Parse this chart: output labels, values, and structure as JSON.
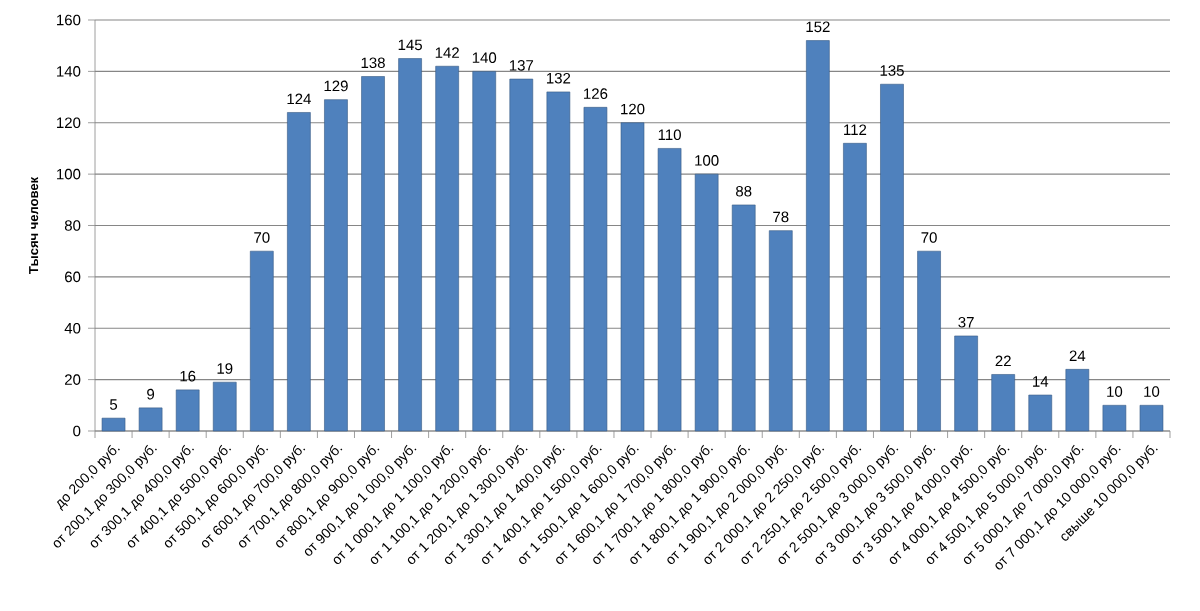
{
  "chart_data": {
    "type": "bar",
    "ylabel": "Тысяч человек",
    "categories": [
      "до 200,0 руб.",
      "от 200,1 до 300,0 руб.",
      "от 300,1 до 400,0 руб.",
      "от 400,1 до 500,0 руб.",
      "от 500,1 до 600,0 руб.",
      "от 600,1 до 700,0 руб.",
      "от 700,1 до 800,0 руб.",
      "от 800,1 до 900,0 руб.",
      "от 900,1 до 1 000,0 руб.",
      "от 1 000,1 до 1 100,0 руб.",
      "от 1 100,1 до 1 200,0 руб.",
      "от 1 200,1 до 1 300,0 руб.",
      "от 1 300,1 до 1 400,0 руб.",
      "от 1 400,1 до 1 500,0 руб.",
      "от 1 500,1 до 1 600,0 руб.",
      "от 1 600,1 до 1 700,0 руб.",
      "от 1 700,1 до 1 800,0 руб.",
      "от 1 800,1 до 1 900,0 руб.",
      "от 1 900,1 до 2 000,0 руб.",
      "от 2 000,1 до 2 250,0 руб.",
      "от 2 250,1 до 2 500,0 руб.",
      "от 2 500,1 до 3 000,0 руб.",
      "от 3 000,1 до 3 500,0 руб.",
      "от 3 500,1 до 4 000,0 руб.",
      "от 4 000,1 до 4 500,0 руб.",
      "от 4 500,1 до 5 000,0 руб.",
      "от 5 000,1 до 7 000,0 руб.",
      "от 7 000,1 до 10 000,0 руб.",
      "свыше 10 000,0 руб."
    ],
    "values": [
      5,
      9,
      16,
      19,
      70,
      124,
      129,
      138,
      145,
      142,
      140,
      137,
      132,
      126,
      120,
      110,
      100,
      88,
      78,
      152,
      112,
      135,
      70,
      37,
      22,
      14,
      24,
      10,
      10
    ],
    "color": "#4f81bd",
    "ylim": [
      0,
      160
    ],
    "yticks": [
      0,
      20,
      40,
      60,
      80,
      100,
      120,
      140,
      160
    ],
    "grid": "y",
    "data_labels": true
  }
}
